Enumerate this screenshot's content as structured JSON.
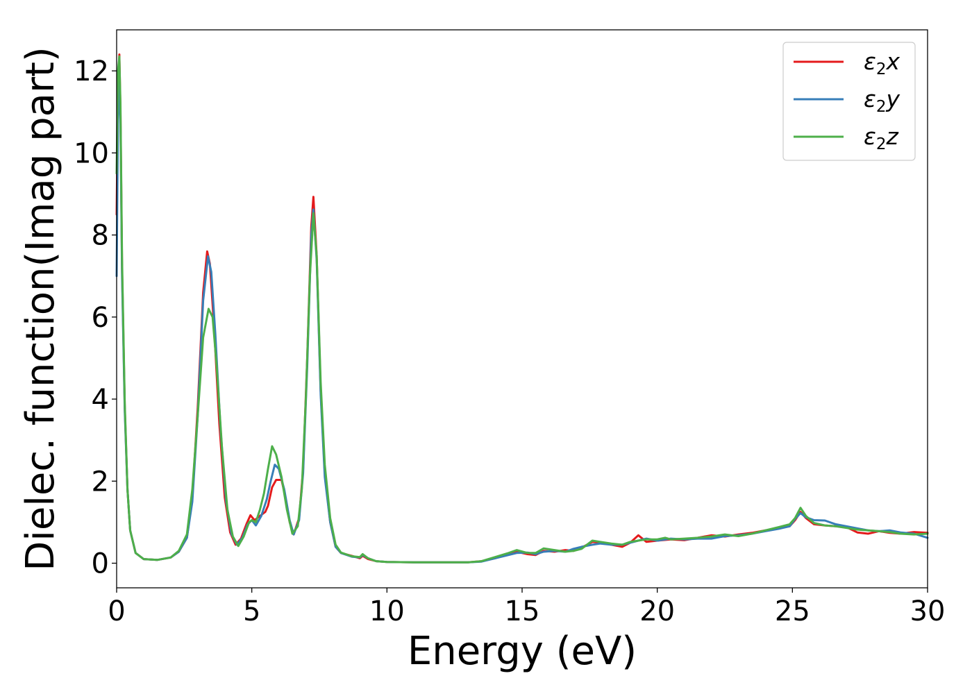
{
  "chart_data": {
    "type": "line",
    "title": "",
    "xlabel": "Energy (eV)",
    "ylabel": "Dielec. function(Imag part)",
    "xlim": [
      0,
      30
    ],
    "ylim": [
      -0.6,
      13.0
    ],
    "xticks": [
      0,
      5,
      10,
      15,
      20,
      25,
      30
    ],
    "yticks": [
      0,
      2,
      4,
      6,
      8,
      10,
      12
    ],
    "grid": false,
    "legend_position": "top-right",
    "series": [
      {
        "name": "ε2x",
        "legend": {
          "sym": "ε",
          "sub": "2",
          "var": "x"
        },
        "color": "#e41a1c",
        "points": [
          [
            0,
            8.5
          ],
          [
            0.05,
            11.5
          ],
          [
            0.1,
            12.4
          ],
          [
            0.14,
            11.0
          ],
          [
            0.2,
            7.2
          ],
          [
            0.3,
            3.8
          ],
          [
            0.4,
            1.8
          ],
          [
            0.5,
            0.8
          ],
          [
            0.7,
            0.25
          ],
          [
            1.0,
            0.1
          ],
          [
            1.5,
            0.08
          ],
          [
            2.0,
            0.14
          ],
          [
            2.3,
            0.28
          ],
          [
            2.6,
            0.62
          ],
          [
            2.8,
            1.6
          ],
          [
            3.0,
            3.8
          ],
          [
            3.2,
            6.6
          ],
          [
            3.35,
            7.6
          ],
          [
            3.45,
            7.3
          ],
          [
            3.6,
            5.8
          ],
          [
            3.8,
            3.4
          ],
          [
            4.0,
            1.6
          ],
          [
            4.2,
            0.75
          ],
          [
            4.4,
            0.45
          ],
          [
            4.6,
            0.6
          ],
          [
            4.8,
            0.95
          ],
          [
            4.95,
            1.17
          ],
          [
            5.1,
            1.05
          ],
          [
            5.3,
            1.15
          ],
          [
            5.5,
            1.25
          ],
          [
            5.6,
            1.4
          ],
          [
            5.75,
            1.85
          ],
          [
            5.9,
            2.03
          ],
          [
            6.1,
            2.03
          ],
          [
            6.25,
            1.6
          ],
          [
            6.4,
            1.0
          ],
          [
            6.55,
            0.7
          ],
          [
            6.75,
            1.1
          ],
          [
            6.9,
            2.3
          ],
          [
            7.05,
            5.0
          ],
          [
            7.2,
            8.2
          ],
          [
            7.28,
            8.93
          ],
          [
            7.4,
            7.5
          ],
          [
            7.55,
            4.2
          ],
          [
            7.7,
            2.2
          ],
          [
            7.9,
            1.0
          ],
          [
            8.1,
            0.4
          ],
          [
            8.3,
            0.25
          ],
          [
            8.7,
            0.18
          ],
          [
            9.0,
            0.12
          ],
          [
            9.1,
            0.18
          ],
          [
            9.3,
            0.1
          ],
          [
            9.6,
            0.05
          ],
          [
            10.0,
            0.03
          ],
          [
            11.0,
            0.02
          ],
          [
            12.0,
            0.02
          ],
          [
            13.0,
            0.02
          ],
          [
            13.5,
            0.05
          ],
          [
            14.0,
            0.12
          ],
          [
            14.5,
            0.22
          ],
          [
            14.8,
            0.28
          ],
          [
            15.2,
            0.22
          ],
          [
            15.5,
            0.2
          ],
          [
            15.8,
            0.3
          ],
          [
            16.2,
            0.28
          ],
          [
            16.6,
            0.32
          ],
          [
            16.9,
            0.3
          ],
          [
            17.2,
            0.38
          ],
          [
            17.6,
            0.52
          ],
          [
            17.9,
            0.5
          ],
          [
            18.3,
            0.45
          ],
          [
            18.7,
            0.4
          ],
          [
            19.0,
            0.5
          ],
          [
            19.3,
            0.68
          ],
          [
            19.6,
            0.52
          ],
          [
            20.0,
            0.55
          ],
          [
            20.5,
            0.58
          ],
          [
            21.0,
            0.56
          ],
          [
            21.5,
            0.62
          ],
          [
            22.0,
            0.68
          ],
          [
            22.5,
            0.65
          ],
          [
            23.0,
            0.7
          ],
          [
            23.5,
            0.74
          ],
          [
            24.0,
            0.8
          ],
          [
            24.5,
            0.85
          ],
          [
            24.9,
            0.9
          ],
          [
            25.1,
            1.05
          ],
          [
            25.3,
            1.25
          ],
          [
            25.5,
            1.1
          ],
          [
            25.8,
            0.95
          ],
          [
            26.2,
            0.92
          ],
          [
            26.6,
            0.9
          ],
          [
            27.0,
            0.88
          ],
          [
            27.4,
            0.75
          ],
          [
            27.8,
            0.72
          ],
          [
            28.2,
            0.78
          ],
          [
            28.6,
            0.74
          ],
          [
            29.0,
            0.72
          ],
          [
            29.5,
            0.76
          ],
          [
            30.0,
            0.74
          ]
        ]
      },
      {
        "name": "ε2y",
        "legend": {
          "sym": "ε",
          "sub": "2",
          "var": "y"
        },
        "color": "#377eb8",
        "points": [
          [
            0,
            7.0
          ],
          [
            0.05,
            10.8
          ],
          [
            0.1,
            11.9
          ],
          [
            0.14,
            10.7
          ],
          [
            0.2,
            7.0
          ],
          [
            0.3,
            3.7
          ],
          [
            0.4,
            1.8
          ],
          [
            0.5,
            0.8
          ],
          [
            0.7,
            0.25
          ],
          [
            1.0,
            0.1
          ],
          [
            1.5,
            0.08
          ],
          [
            2.0,
            0.14
          ],
          [
            2.3,
            0.28
          ],
          [
            2.6,
            0.62
          ],
          [
            2.8,
            1.5
          ],
          [
            3.0,
            3.6
          ],
          [
            3.2,
            6.4
          ],
          [
            3.38,
            7.48
          ],
          [
            3.5,
            7.1
          ],
          [
            3.65,
            5.6
          ],
          [
            3.85,
            3.2
          ],
          [
            4.05,
            1.5
          ],
          [
            4.25,
            0.7
          ],
          [
            4.45,
            0.45
          ],
          [
            4.65,
            0.62
          ],
          [
            4.85,
            0.95
          ],
          [
            5.0,
            1.05
          ],
          [
            5.15,
            0.92
          ],
          [
            5.35,
            1.15
          ],
          [
            5.55,
            1.55
          ],
          [
            5.7,
            2.0
          ],
          [
            5.85,
            2.4
          ],
          [
            6.0,
            2.3
          ],
          [
            6.2,
            1.8
          ],
          [
            6.4,
            1.05
          ],
          [
            6.55,
            0.7
          ],
          [
            6.75,
            1.05
          ],
          [
            6.9,
            2.2
          ],
          [
            7.05,
            4.8
          ],
          [
            7.2,
            8.0
          ],
          [
            7.28,
            8.62
          ],
          [
            7.4,
            7.4
          ],
          [
            7.55,
            4.1
          ],
          [
            7.7,
            2.1
          ],
          [
            7.9,
            1.0
          ],
          [
            8.1,
            0.4
          ],
          [
            8.3,
            0.25
          ],
          [
            8.7,
            0.16
          ],
          [
            9.0,
            0.14
          ],
          [
            9.1,
            0.2
          ],
          [
            9.3,
            0.12
          ],
          [
            9.6,
            0.05
          ],
          [
            10.0,
            0.03
          ],
          [
            11.0,
            0.02
          ],
          [
            12.0,
            0.02
          ],
          [
            13.0,
            0.02
          ],
          [
            13.5,
            0.04
          ],
          [
            14.0,
            0.12
          ],
          [
            14.5,
            0.2
          ],
          [
            14.8,
            0.25
          ],
          [
            15.2,
            0.26
          ],
          [
            15.5,
            0.22
          ],
          [
            15.8,
            0.28
          ],
          [
            16.2,
            0.3
          ],
          [
            16.6,
            0.28
          ],
          [
            16.9,
            0.35
          ],
          [
            17.2,
            0.4
          ],
          [
            17.6,
            0.45
          ],
          [
            17.9,
            0.48
          ],
          [
            18.3,
            0.45
          ],
          [
            18.7,
            0.45
          ],
          [
            19.0,
            0.5
          ],
          [
            19.3,
            0.55
          ],
          [
            19.6,
            0.6
          ],
          [
            20.0,
            0.55
          ],
          [
            20.5,
            0.6
          ],
          [
            21.0,
            0.58
          ],
          [
            21.5,
            0.6
          ],
          [
            22.0,
            0.6
          ],
          [
            22.5,
            0.66
          ],
          [
            23.0,
            0.68
          ],
          [
            23.5,
            0.72
          ],
          [
            24.0,
            0.78
          ],
          [
            24.5,
            0.84
          ],
          [
            24.9,
            0.9
          ],
          [
            25.1,
            1.08
          ],
          [
            25.3,
            1.22
          ],
          [
            25.5,
            1.12
          ],
          [
            25.8,
            1.05
          ],
          [
            26.2,
            1.04
          ],
          [
            26.6,
            0.95
          ],
          [
            27.0,
            0.9
          ],
          [
            27.4,
            0.85
          ],
          [
            27.8,
            0.8
          ],
          [
            28.2,
            0.78
          ],
          [
            28.6,
            0.8
          ],
          [
            29.0,
            0.75
          ],
          [
            29.5,
            0.72
          ],
          [
            30.0,
            0.62
          ]
        ]
      },
      {
        "name": "ε2z",
        "legend": {
          "sym": "ε",
          "sub": "2",
          "var": "z"
        },
        "color": "#4daf4a",
        "points": [
          [
            0,
            9.5
          ],
          [
            0.05,
            12.0
          ],
          [
            0.1,
            12.35
          ],
          [
            0.14,
            11.2
          ],
          [
            0.2,
            7.4
          ],
          [
            0.3,
            3.9
          ],
          [
            0.4,
            1.8
          ],
          [
            0.5,
            0.8
          ],
          [
            0.7,
            0.25
          ],
          [
            1.0,
            0.1
          ],
          [
            1.5,
            0.08
          ],
          [
            2.0,
            0.14
          ],
          [
            2.3,
            0.3
          ],
          [
            2.6,
            0.7
          ],
          [
            2.8,
            1.8
          ],
          [
            3.0,
            3.6
          ],
          [
            3.2,
            5.5
          ],
          [
            3.4,
            6.2
          ],
          [
            3.55,
            6.0
          ],
          [
            3.7,
            4.8
          ],
          [
            3.9,
            2.8
          ],
          [
            4.1,
            1.3
          ],
          [
            4.3,
            0.65
          ],
          [
            4.5,
            0.42
          ],
          [
            4.7,
            0.65
          ],
          [
            4.9,
            1.0
          ],
          [
            5.0,
            1.05
          ],
          [
            5.15,
            1.0
          ],
          [
            5.3,
            1.3
          ],
          [
            5.45,
            1.7
          ],
          [
            5.6,
            2.3
          ],
          [
            5.75,
            2.85
          ],
          [
            5.9,
            2.65
          ],
          [
            6.1,
            2.1
          ],
          [
            6.3,
            1.3
          ],
          [
            6.5,
            0.72
          ],
          [
            6.7,
            0.9
          ],
          [
            6.85,
            1.8
          ],
          [
            7.0,
            4.0
          ],
          [
            7.15,
            7.0
          ],
          [
            7.28,
            8.53
          ],
          [
            7.4,
            7.5
          ],
          [
            7.55,
            4.4
          ],
          [
            7.7,
            2.4
          ],
          [
            7.9,
            1.1
          ],
          [
            8.1,
            0.45
          ],
          [
            8.3,
            0.26
          ],
          [
            8.7,
            0.17
          ],
          [
            9.0,
            0.15
          ],
          [
            9.1,
            0.22
          ],
          [
            9.3,
            0.12
          ],
          [
            9.6,
            0.05
          ],
          [
            10.0,
            0.03
          ],
          [
            11.0,
            0.02
          ],
          [
            12.0,
            0.02
          ],
          [
            13.0,
            0.02
          ],
          [
            13.5,
            0.05
          ],
          [
            14.0,
            0.15
          ],
          [
            14.5,
            0.25
          ],
          [
            14.8,
            0.32
          ],
          [
            15.2,
            0.25
          ],
          [
            15.5,
            0.25
          ],
          [
            15.8,
            0.36
          ],
          [
            16.2,
            0.32
          ],
          [
            16.6,
            0.28
          ],
          [
            16.9,
            0.3
          ],
          [
            17.2,
            0.35
          ],
          [
            17.6,
            0.55
          ],
          [
            17.9,
            0.52
          ],
          [
            18.3,
            0.48
          ],
          [
            18.7,
            0.45
          ],
          [
            19.0,
            0.52
          ],
          [
            19.3,
            0.55
          ],
          [
            19.6,
            0.58
          ],
          [
            20.0,
            0.58
          ],
          [
            20.3,
            0.62
          ],
          [
            20.5,
            0.58
          ],
          [
            21.0,
            0.6
          ],
          [
            21.5,
            0.62
          ],
          [
            22.0,
            0.65
          ],
          [
            22.5,
            0.7
          ],
          [
            23.0,
            0.66
          ],
          [
            23.5,
            0.72
          ],
          [
            24.0,
            0.8
          ],
          [
            24.5,
            0.88
          ],
          [
            24.9,
            0.95
          ],
          [
            25.1,
            1.1
          ],
          [
            25.3,
            1.35
          ],
          [
            25.5,
            1.15
          ],
          [
            25.8,
            0.98
          ],
          [
            26.2,
            0.92
          ],
          [
            26.6,
            0.9
          ],
          [
            27.0,
            0.86
          ],
          [
            27.4,
            0.82
          ],
          [
            27.8,
            0.8
          ],
          [
            28.2,
            0.78
          ],
          [
            28.6,
            0.76
          ],
          [
            29.0,
            0.72
          ],
          [
            29.5,
            0.7
          ],
          [
            30.0,
            0.72
          ]
        ]
      }
    ]
  }
}
